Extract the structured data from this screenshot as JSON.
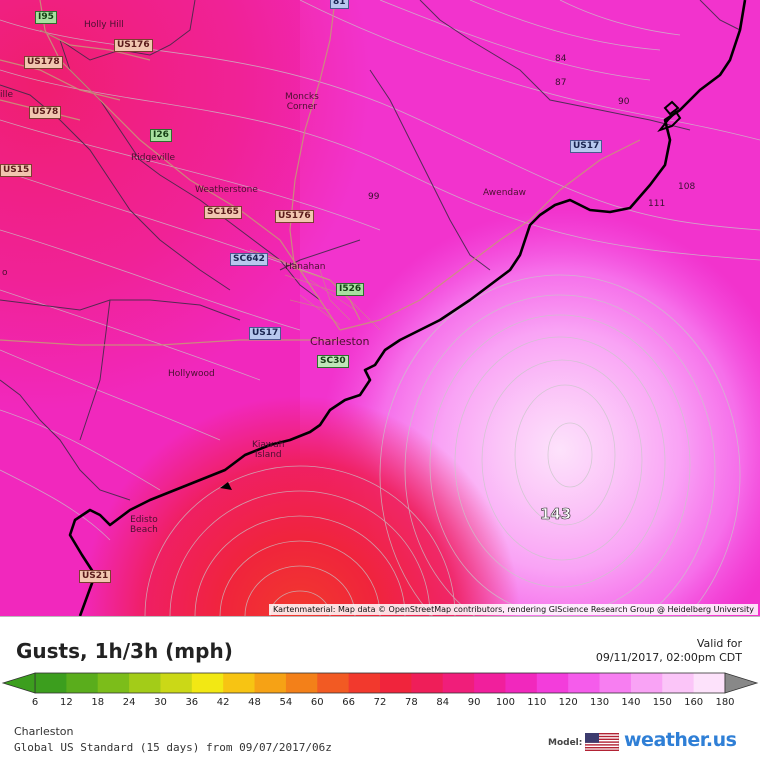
{
  "map": {
    "towns": {
      "holly_hill": "Holly Hill",
      "moncks_corner": "Moncks\nCorner",
      "ridgeville": "Ridgeville",
      "weatherstone": "Weatherstone",
      "hanahan": "Hanahan",
      "awendaw": "Awendaw",
      "charleston": "Charleston",
      "hollywood": "Hollywood",
      "kiawah_island": "Kiawah\nIsland",
      "edisto_beach": "Edisto\nBeach",
      "ville": "ille",
      "o": "o"
    },
    "shields": {
      "i95": "I95",
      "us176_top": "US176",
      "us178": "US178",
      "us78": "US78",
      "i26": "I26",
      "us15": "US15",
      "sc165": "SC165",
      "us176_mid": "US176",
      "sc642": "SC642",
      "i526": "I526",
      "us17_left": "US17",
      "sc30": "SC30",
      "us17_right": "US17",
      "us21": "US21",
      "top_81": "81"
    },
    "contour_labels": {
      "c84": "84",
      "c87": "87",
      "c90": "90",
      "c99": "99",
      "c108": "108",
      "c111": "111",
      "max": "143"
    },
    "attribution": "Kartenmaterial: Map data © OpenStreetMap contributors, rendering GIScience Research Group @ Heidelberg University"
  },
  "legend": {
    "title": "Gusts, 1h/3h (mph)",
    "valid_label": "Valid for",
    "valid_time": "09/11/2017, 02:00pm CDT",
    "ticks": [
      "6",
      "12",
      "18",
      "24",
      "30",
      "36",
      "42",
      "48",
      "54",
      "60",
      "66",
      "72",
      "78",
      "84",
      "90",
      "100",
      "110",
      "120",
      "130",
      "140",
      "150",
      "160",
      "180"
    ],
    "colors": [
      "#3c9e1e",
      "#5aad1c",
      "#7cbd1a",
      "#a3cc18",
      "#cbd817",
      "#f2e814",
      "#f7c413",
      "#f6a215",
      "#f38019",
      "#f25a23",
      "#f2392d",
      "#f0243c",
      "#ef1e59",
      "#f01e7a",
      "#f11f9c",
      "#f128bd",
      "#f33ddb",
      "#f55ceb",
      "#f77ef1",
      "#f9a3f5",
      "#fbc5f8",
      "#fde2fb",
      "#ffffff"
    ],
    "location": "Charleston",
    "model_run": "Global US Standard (15 days) from 09/07/2017/06z",
    "model_label": "Model:",
    "brand": "weather.us"
  }
}
